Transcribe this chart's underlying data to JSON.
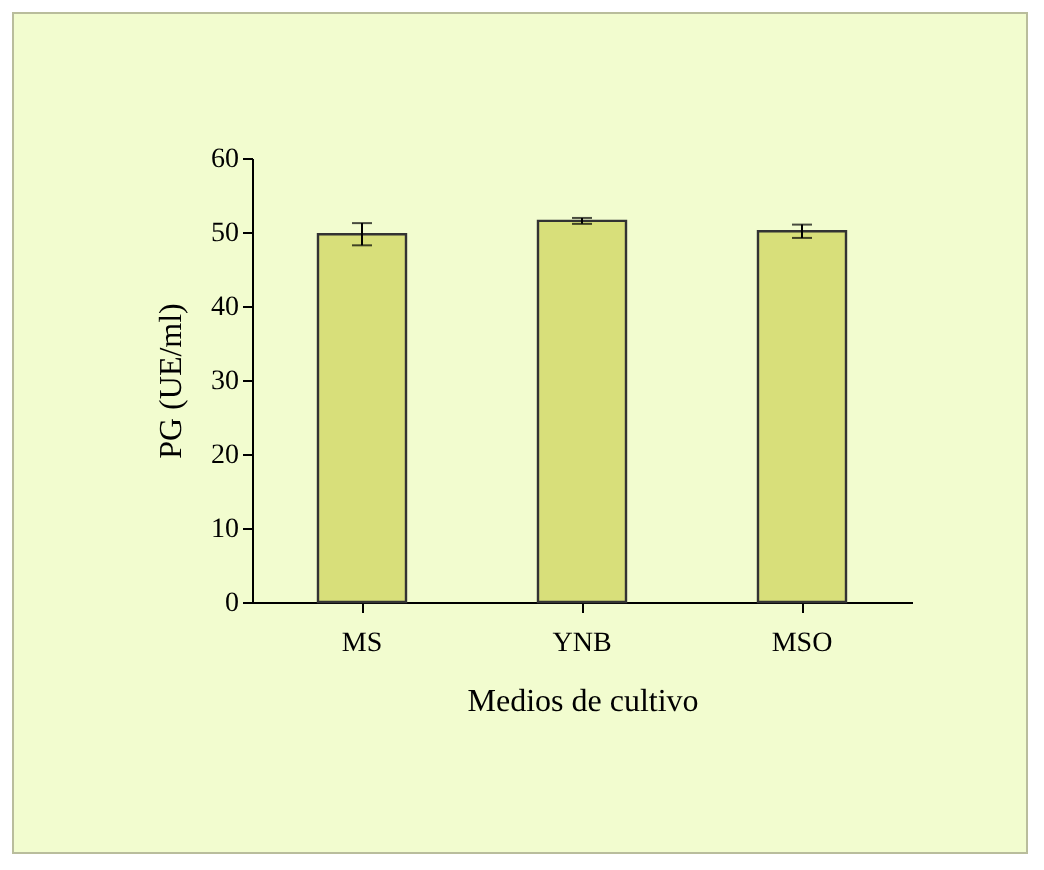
{
  "chart_data": {
    "type": "bar",
    "xlabel": "Medios de cultivo",
    "ylabel": "PG (UE/ml)",
    "categories": [
      "MS",
      "YNB",
      "MSO"
    ],
    "values": [
      49.7,
      51.5,
      50.1
    ],
    "errors": [
      1.5,
      0.4,
      0.9
    ],
    "color": "#d8df7a",
    "ylim": [
      0,
      60
    ],
    "yticks": [
      0,
      10,
      20,
      30,
      40,
      50,
      60
    ],
    "grid": false
  }
}
